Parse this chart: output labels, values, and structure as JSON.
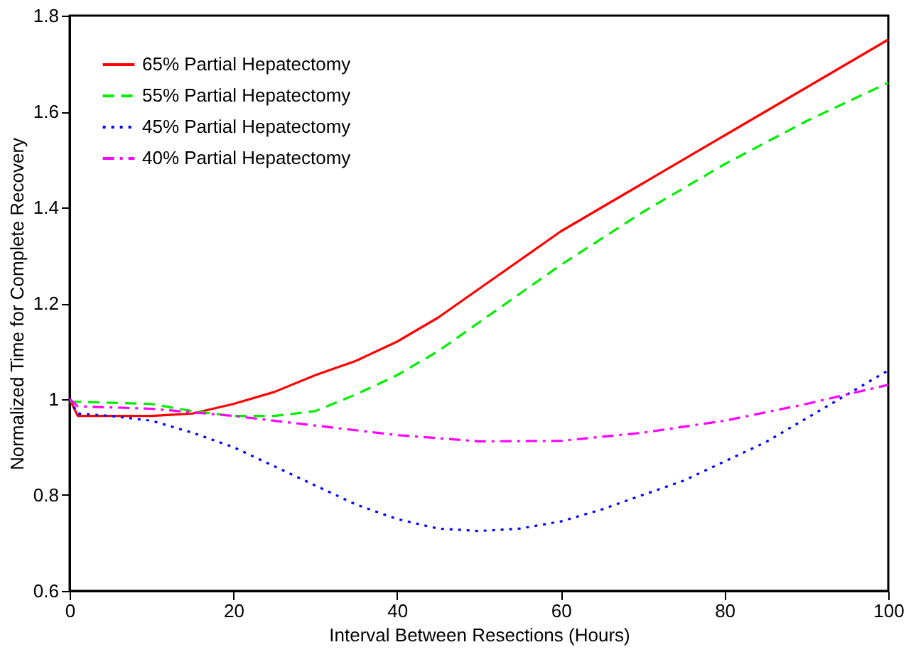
{
  "chart_data": {
    "type": "line",
    "xlabel": "Interval Between Resections (Hours)",
    "ylabel": "Normalized Time for Complete Recovery",
    "xlim": [
      0,
      100
    ],
    "xticks": [
      0,
      20,
      40,
      60,
      80,
      100
    ],
    "ylim": [
      0.6,
      1.8
    ],
    "yticks": [
      0.6,
      0.8,
      1,
      1.2,
      1.4,
      1.6,
      1.8
    ],
    "grid": false,
    "legend": "top left",
    "marker": "none",
    "series": [
      {
        "name": "65% Partial Hepatectomy",
        "color": "#ff0000",
        "line_style": "solid",
        "x": [
          0,
          1,
          10,
          15,
          20,
          25,
          30,
          35,
          40,
          45,
          50,
          60,
          70,
          80,
          90,
          100
        ],
        "values": [
          1.0,
          0.965,
          0.965,
          0.97,
          0.99,
          1.015,
          1.05,
          1.08,
          1.12,
          1.17,
          1.23,
          1.35,
          1.45,
          1.55,
          1.65,
          1.75
        ]
      },
      {
        "name": "55% Partial Hepatectomy",
        "color": "#00ee00",
        "line_style": "dashed",
        "x": [
          0,
          10,
          15,
          20,
          25,
          30,
          35,
          40,
          45,
          50,
          60,
          70,
          80,
          90,
          100
        ],
        "values": [
          0.995,
          0.99,
          0.975,
          0.965,
          0.965,
          0.975,
          1.01,
          1.05,
          1.1,
          1.16,
          1.28,
          1.39,
          1.49,
          1.58,
          1.66
        ]
      },
      {
        "name": "45% Partial Hepatectomy",
        "color": "#0000ff",
        "line_style": "dotted",
        "x": [
          0,
          1,
          5,
          10,
          15,
          20,
          25,
          30,
          35,
          40,
          45,
          50,
          55,
          60,
          65,
          70,
          75,
          80,
          85,
          90,
          95,
          100
        ],
        "values": [
          1.0,
          0.97,
          0.965,
          0.955,
          0.93,
          0.9,
          0.86,
          0.82,
          0.78,
          0.75,
          0.73,
          0.725,
          0.73,
          0.745,
          0.77,
          0.8,
          0.83,
          0.87,
          0.91,
          0.96,
          1.01,
          1.06
        ]
      },
      {
        "name": "40% Partial Hepatectomy",
        "color": "#ff00ff",
        "line_style": "dashdot",
        "x": [
          0,
          1,
          10,
          20,
          30,
          40,
          50,
          60,
          70,
          80,
          90,
          100
        ],
        "values": [
          1.0,
          0.985,
          0.98,
          0.965,
          0.945,
          0.925,
          0.912,
          0.913,
          0.93,
          0.955,
          0.99,
          1.03
        ]
      }
    ]
  }
}
